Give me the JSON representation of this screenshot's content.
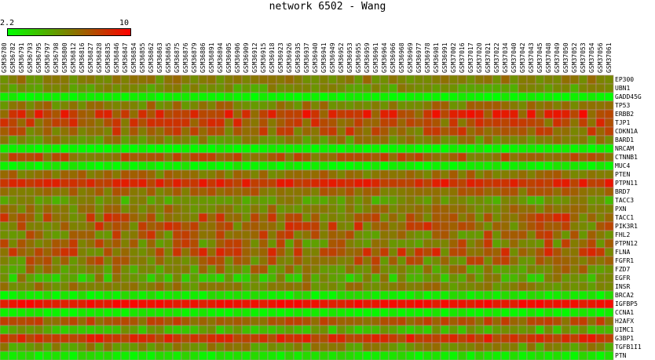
{
  "chart_data": {
    "type": "heatmap",
    "title": "network 6502 - Wang",
    "colorbar": {
      "min_label": "2.2",
      "max_label": "10",
      "low_color": "#00ff00",
      "high_color": "#ff0000"
    },
    "columns": [
      "GSM36780",
      "GSM36782",
      "GSM36791",
      "GSM36793",
      "GSM36795",
      "GSM36797",
      "GSM36798",
      "GSM36800",
      "GSM36812",
      "GSM36816",
      "GSM36827",
      "GSM36828",
      "GSM36835",
      "GSM36846",
      "GSM36847",
      "GSM36854",
      "GSM36855",
      "GSM36862",
      "GSM36863",
      "GSM36865",
      "GSM36875",
      "GSM36876",
      "GSM36879",
      "GSM36886",
      "GSM36891",
      "GSM36894",
      "GSM36905",
      "GSM36906",
      "GSM36909",
      "GSM36912",
      "GSM36915",
      "GSM36918",
      "GSM36923",
      "GSM36926",
      "GSM36935",
      "GSM36937",
      "GSM36940",
      "GSM36941",
      "GSM36949",
      "GSM36952",
      "GSM36953",
      "GSM36955",
      "GSM36959",
      "GSM36961",
      "GSM36964",
      "GSM36966",
      "GSM36968",
      "GSM36969",
      "GSM36977",
      "GSM36978",
      "GSM36981",
      "GSM36991",
      "GSM37002",
      "GSM37016",
      "GSM37017",
      "GSM37020",
      "GSM37021",
      "GSM37022",
      "GSM37034",
      "GSM37040",
      "GSM37042",
      "GSM37043",
      "GSM37045",
      "GSM37048",
      "GSM37049",
      "GSM37050",
      "GSM37052",
      "GSM37053",
      "GSM37054",
      "GSM37056",
      "GSM37061"
    ],
    "rows": [
      {
        "gene": "EP300",
        "level": 0.5,
        "variation": 0.1
      },
      {
        "gene": "UBN1",
        "level": 0.42,
        "variation": 0.12
      },
      {
        "gene": "GADD45G",
        "level": 0.04,
        "variation": 0.05
      },
      {
        "gene": "TP53",
        "level": 0.52,
        "variation": 0.13
      },
      {
        "gene": "ERBB2",
        "level": 0.76,
        "variation": 0.2
      },
      {
        "gene": "TJP1",
        "level": 0.68,
        "variation": 0.18
      },
      {
        "gene": "CDKN1A",
        "level": 0.62,
        "variation": 0.2
      },
      {
        "gene": "BARD1",
        "level": 0.46,
        "variation": 0.12
      },
      {
        "gene": "NRCAM",
        "level": 0.04,
        "variation": 0.05
      },
      {
        "gene": "CTNNB1",
        "level": 0.62,
        "variation": 0.15
      },
      {
        "gene": "MUC4",
        "level": 0.05,
        "variation": 0.06
      },
      {
        "gene": "PTEN",
        "level": 0.55,
        "variation": 0.12
      },
      {
        "gene": "PTPN11",
        "level": 0.82,
        "variation": 0.1
      },
      {
        "gene": "BRD7",
        "level": 0.58,
        "variation": 0.12
      },
      {
        "gene": "TACC3",
        "level": 0.4,
        "variation": 0.15
      },
      {
        "gene": "PXN",
        "level": 0.52,
        "variation": 0.13
      },
      {
        "gene": "TACC1",
        "level": 0.64,
        "variation": 0.22
      },
      {
        "gene": "PIK3R1",
        "level": 0.62,
        "variation": 0.22
      },
      {
        "gene": "FHL2",
        "level": 0.58,
        "variation": 0.22
      },
      {
        "gene": "PTPN12",
        "level": 0.56,
        "variation": 0.22
      },
      {
        "gene": "FLNA",
        "level": 0.64,
        "variation": 0.22
      },
      {
        "gene": "FGFR1",
        "level": 0.56,
        "variation": 0.2
      },
      {
        "gene": "FZD7",
        "level": 0.48,
        "variation": 0.18
      },
      {
        "gene": "EGFR",
        "level": 0.35,
        "variation": 0.22
      },
      {
        "gene": "INSR",
        "level": 0.5,
        "variation": 0.12
      },
      {
        "gene": "BRCA2",
        "level": 0.08,
        "variation": 0.08
      },
      {
        "gene": "IGFBP5",
        "level": 0.92,
        "variation": 0.06
      },
      {
        "gene": "CCNA1",
        "level": 0.06,
        "variation": 0.05
      },
      {
        "gene": "H2AFX",
        "level": 0.66,
        "variation": 0.12
      },
      {
        "gene": "UIMC1",
        "level": 0.32,
        "variation": 0.14
      },
      {
        "gene": "G3BP1",
        "level": 0.8,
        "variation": 0.12
      },
      {
        "gene": "TGFB1I1",
        "level": 0.44,
        "variation": 0.14
      },
      {
        "gene": "PTN",
        "level": 0.1,
        "variation": 0.08
      }
    ]
  }
}
